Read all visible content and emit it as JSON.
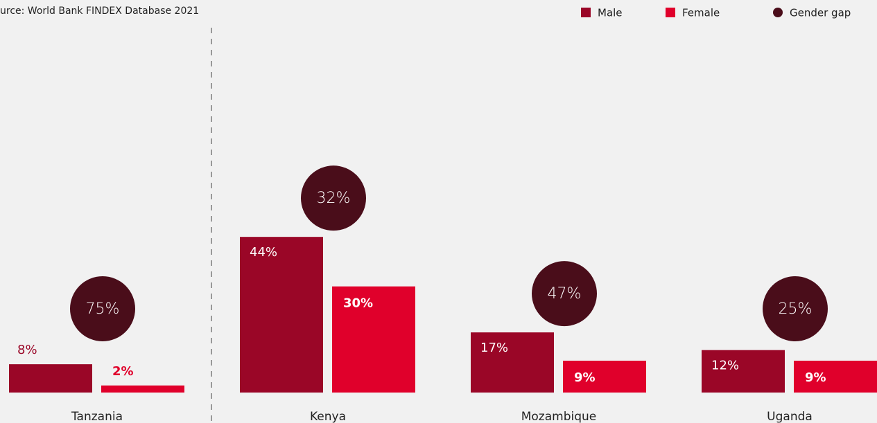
{
  "chart_data": {
    "type": "bar",
    "source": "urce: World Bank FINDEX Database 2021",
    "categories": [
      "Tanzania",
      "Kenya",
      "Mozambique",
      "Uganda"
    ],
    "series": [
      {
        "name": "Male",
        "color": "#9a0627",
        "values": [
          8,
          44,
          17,
          12
        ],
        "value_labels": [
          "8%",
          "44%",
          "17%",
          "12%"
        ]
      },
      {
        "name": "Female",
        "color": "#e0002b",
        "values": [
          2,
          30,
          9,
          9
        ],
        "value_labels": [
          "2%",
          "30%",
          "9%",
          "9%"
        ]
      },
      {
        "name": "Gender gap",
        "color": "#4a0d1a",
        "values": [
          75,
          32,
          47,
          25
        ],
        "value_labels": [
          "75%",
          "32%",
          "47%",
          "25%"
        ]
      }
    ],
    "ylim": [
      0,
      100
    ]
  }
}
